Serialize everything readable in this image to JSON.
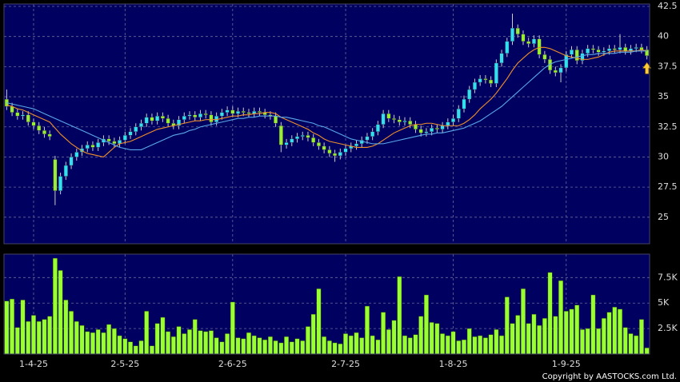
{
  "chart_data": [
    {
      "type": "candlestick",
      "xlim": [
        -0.5,
        119.5
      ],
      "ylim": [
        22.8,
        42.7
      ],
      "yticks": [
        25,
        27.5,
        30,
        32.5,
        35,
        37.5,
        40,
        42.5
      ],
      "grid": true,
      "background": "#000060",
      "up_color": "#33e0f0",
      "down_color": "#99ee33",
      "wick_color": "#cccccc",
      "open": [
        34.8,
        34.2,
        33.7,
        33.4,
        33.5,
        32.9,
        32.6,
        32.2,
        31.9,
        29.8,
        27.2,
        28.4,
        29.3,
        30.0,
        30.4,
        30.7,
        31.0,
        30.8,
        31.2,
        31.5,
        31.3,
        31.1,
        31.4,
        31.8,
        32.1,
        32.5,
        32.8,
        33.3,
        33.0,
        33.4,
        33.2,
        32.8,
        32.6,
        33.1,
        33.4,
        33.5,
        33.3,
        33.6,
        33.5,
        32.9,
        33.4,
        33.7,
        33.9,
        33.6,
        33.8,
        33.7,
        33.6,
        33.8,
        33.7,
        33.5,
        33.4,
        32.6,
        31.0,
        31.2,
        31.5,
        31.7,
        31.8,
        31.6,
        31.2,
        30.9,
        30.6,
        30.3,
        30.1,
        30.4,
        30.7,
        30.9,
        31.1,
        31.4,
        31.7,
        32.1,
        32.7,
        33.6,
        33.2,
        33.1,
        32.9,
        33.0,
        32.7,
        32.3,
        32.0,
        32.1,
        32.4,
        32.3,
        32.6,
        32.9,
        33.2,
        34.0,
        34.8,
        35.6,
        36.2,
        36.5,
        36.4,
        36.1,
        37.8,
        38.6,
        39.6,
        40.7,
        40.2,
        39.6,
        39.4,
        39.8,
        38.5,
        38.1,
        37.2,
        37.0,
        37.4,
        38.5,
        38.9,
        38.0,
        38.6,
        39.0,
        38.9,
        38.7,
        38.8,
        39.0,
        38.9,
        39.1,
        38.8,
        39.0,
        39.1,
        38.9
      ],
      "high": [
        35.6,
        34.5,
        34.0,
        33.8,
        33.8,
        33.2,
        32.9,
        32.5,
        32.2,
        30.1,
        28.7,
        29.6,
        30.3,
        30.7,
        31.0,
        31.3,
        31.3,
        31.5,
        31.8,
        31.8,
        31.6,
        31.7,
        32.1,
        32.4,
        32.8,
        33.1,
        33.6,
        33.6,
        33.7,
        33.7,
        33.5,
        33.1,
        33.4,
        33.7,
        33.8,
        33.8,
        33.9,
        33.9,
        33.8,
        33.7,
        34.0,
        34.2,
        34.2,
        34.1,
        34.1,
        34.0,
        34.1,
        34.1,
        34.0,
        33.8,
        33.7,
        32.9,
        31.5,
        31.8,
        32.0,
        32.1,
        32.1,
        31.9,
        31.5,
        31.2,
        30.9,
        30.6,
        30.7,
        31.0,
        31.2,
        31.4,
        31.7,
        32.0,
        32.4,
        33.0,
        33.9,
        33.9,
        33.5,
        33.4,
        33.3,
        33.3,
        33.0,
        32.6,
        32.4,
        32.7,
        32.7,
        32.9,
        33.2,
        33.5,
        34.3,
        35.1,
        35.9,
        36.5,
        36.8,
        36.8,
        36.7,
        38.1,
        38.9,
        39.9,
        41.9,
        41.0,
        40.5,
        39.9,
        40.1,
        40.1,
        38.8,
        38.4,
        37.5,
        37.7,
        38.8,
        39.2,
        39.2,
        38.9,
        39.3,
        39.3,
        39.2,
        39.1,
        39.3,
        39.3,
        40.2,
        39.4,
        39.3,
        39.4,
        39.4,
        39.2
      ],
      "low": [
        33.9,
        33.4,
        33.1,
        33.1,
        32.6,
        32.3,
        31.9,
        31.6,
        31.4,
        26.0,
        26.9,
        28.1,
        29.0,
        29.7,
        30.1,
        30.4,
        30.5,
        30.5,
        30.9,
        31.0,
        30.8,
        30.8,
        31.1,
        31.5,
        31.8,
        32.2,
        32.5,
        32.7,
        32.7,
        32.9,
        32.5,
        32.3,
        32.3,
        32.8,
        33.1,
        33.0,
        33.0,
        33.2,
        32.6,
        32.6,
        33.1,
        33.4,
        33.3,
        33.3,
        33.4,
        33.3,
        33.3,
        33.4,
        33.2,
        33.1,
        32.5,
        30.4,
        30.7,
        30.9,
        31.2,
        31.4,
        31.3,
        30.9,
        30.6,
        30.3,
        30.0,
        29.6,
        29.8,
        30.1,
        30.4,
        30.6,
        30.8,
        31.1,
        31.4,
        31.8,
        32.4,
        32.9,
        32.8,
        32.6,
        32.6,
        32.4,
        32.0,
        31.7,
        31.7,
        31.8,
        32.0,
        32.0,
        32.3,
        32.6,
        32.9,
        33.7,
        34.5,
        35.3,
        35.9,
        36.1,
        35.8,
        35.8,
        37.5,
        38.3,
        39.3,
        39.9,
        39.3,
        39.1,
        39.1,
        38.2,
        37.8,
        36.9,
        36.7,
        36.2,
        37.1,
        38.2,
        37.7,
        37.7,
        38.3,
        38.6,
        38.4,
        38.4,
        38.5,
        38.6,
        38.6,
        38.5,
        38.5,
        38.7,
        38.6,
        38.1
      ],
      "close": [
        34.2,
        33.7,
        33.4,
        33.5,
        32.9,
        32.6,
        32.2,
        31.9,
        31.7,
        27.2,
        28.4,
        29.3,
        30.0,
        30.4,
        30.7,
        31.0,
        30.8,
        31.2,
        31.5,
        31.3,
        31.1,
        31.4,
        31.8,
        32.1,
        32.5,
        32.8,
        33.3,
        33.0,
        33.4,
        33.2,
        32.8,
        32.6,
        33.1,
        33.4,
        33.5,
        33.3,
        33.6,
        33.5,
        32.9,
        33.4,
        33.7,
        33.9,
        33.6,
        33.8,
        33.7,
        33.6,
        33.8,
        33.7,
        33.5,
        33.4,
        32.8,
        31.0,
        31.2,
        31.5,
        31.7,
        31.8,
        31.6,
        31.2,
        30.9,
        30.6,
        30.3,
        30.1,
        30.4,
        30.7,
        30.9,
        31.1,
        31.4,
        31.7,
        32.1,
        32.7,
        33.6,
        33.2,
        33.1,
        32.9,
        33.0,
        32.7,
        32.3,
        32.0,
        32.1,
        32.4,
        32.3,
        32.6,
        32.9,
        33.2,
        34.0,
        34.8,
        35.6,
        36.2,
        36.5,
        36.4,
        36.1,
        37.8,
        38.6,
        39.6,
        40.7,
        40.2,
        39.6,
        39.4,
        39.8,
        38.5,
        38.1,
        37.2,
        37.0,
        37.4,
        38.5,
        38.9,
        38.0,
        38.6,
        39.0,
        38.9,
        38.7,
        38.8,
        39.0,
        38.9,
        39.1,
        38.8,
        39.0,
        39.1,
        38.9,
        38.4
      ],
      "ma_lines": [
        {
          "color": "#f0902a",
          "values": [
            34.3,
            34.2,
            34.0,
            33.9,
            33.7,
            33.5,
            33.3,
            33.1,
            32.9,
            32.4,
            31.9,
            31.5,
            31.1,
            30.8,
            30.5,
            30.3,
            30.2,
            30.1,
            30.0,
            30.4,
            30.8,
            31.1,
            31.2,
            31.3,
            31.5,
            31.7,
            31.9,
            32.1,
            32.3,
            32.4,
            32.5,
            32.6,
            32.7,
            32.8,
            32.9,
            33.0,
            33.0,
            33.1,
            33.1,
            33.1,
            33.2,
            33.3,
            33.4,
            33.4,
            33.5,
            33.5,
            33.6,
            33.6,
            33.7,
            33.7,
            33.6,
            33.3,
            33.1,
            32.9,
            32.7,
            32.5,
            32.3,
            32.0,
            31.8,
            31.5,
            31.3,
            31.2,
            31.1,
            31.0,
            30.9,
            30.8,
            30.8,
            30.8,
            30.9,
            31.1,
            31.4,
            31.7,
            32.0,
            32.2,
            32.4,
            32.6,
            32.7,
            32.7,
            32.8,
            32.8,
            32.7,
            32.6,
            32.6,
            32.6,
            32.6,
            32.8,
            33.1,
            33.5,
            34.0,
            34.4,
            34.8,
            35.3,
            35.9,
            36.5,
            37.2,
            37.8,
            38.2,
            38.6,
            38.9,
            39.1,
            39.1,
            39.0,
            38.8,
            38.6,
            38.4,
            38.3,
            38.2,
            38.1,
            38.1,
            38.2,
            38.3,
            38.5,
            38.7,
            38.8,
            38.8,
            38.8,
            38.8,
            38.8,
            38.9,
            38.8
          ]
        },
        {
          "color": "#5aa8e8",
          "values": [
            34.5,
            34.4,
            34.3,
            34.2,
            34.1,
            34.0,
            33.8,
            33.6,
            33.4,
            33.2,
            33.0,
            32.8,
            32.6,
            32.4,
            32.2,
            32.0,
            31.8,
            31.6,
            31.4,
            31.2,
            31.0,
            30.8,
            30.7,
            30.6,
            30.6,
            30.6,
            30.8,
            31.0,
            31.2,
            31.4,
            31.6,
            31.8,
            31.9,
            32.0,
            32.2,
            32.3,
            32.5,
            32.6,
            32.7,
            32.8,
            32.9,
            33.0,
            33.1,
            33.2,
            33.2,
            33.3,
            33.3,
            33.4,
            33.4,
            33.4,
            33.4,
            33.3,
            33.3,
            33.2,
            33.1,
            33.0,
            32.9,
            32.8,
            32.6,
            32.5,
            32.3,
            32.1,
            31.9,
            31.7,
            31.5,
            31.4,
            31.3,
            31.2,
            31.1,
            31.1,
            31.1,
            31.2,
            31.3,
            31.4,
            31.5,
            31.6,
            31.7,
            31.8,
            31.9,
            31.9,
            32.0,
            32.0,
            32.1,
            32.2,
            32.3,
            32.4,
            32.6,
            32.8,
            33.0,
            33.3,
            33.6,
            33.9,
            34.2,
            34.6,
            35.0,
            35.4,
            35.8,
            36.2,
            36.6,
            37.0,
            37.4,
            37.7,
            37.9,
            38.0,
            38.1,
            38.2,
            38.3,
            38.4,
            38.5,
            38.5,
            38.6,
            38.6,
            38.6,
            38.6,
            38.7,
            38.7,
            38.7,
            38.8,
            38.8,
            38.8
          ]
        }
      ]
    },
    {
      "type": "bar",
      "xlim": [
        -0.5,
        119.5
      ],
      "ylim": [
        0,
        9800
      ],
      "yticks": [
        {
          "value": 2500,
          "label": "2.5K"
        },
        {
          "value": 5000,
          "label": "5K"
        },
        {
          "value": 7500,
          "label": "7.5K"
        }
      ],
      "xticks": [
        {
          "value": 5,
          "label": "1-4-25"
        },
        {
          "value": 22,
          "label": "2-5-25"
        },
        {
          "value": 42,
          "label": "2-6-25"
        },
        {
          "value": 63,
          "label": "2-7-25"
        },
        {
          "value": 83,
          "label": "1-8-25"
        },
        {
          "value": 104,
          "label": "1-9-25"
        }
      ],
      "grid": true,
      "background": "#000060",
      "color": "#99ff33",
      "values": [
        5200,
        5400,
        2600,
        5300,
        3200,
        3800,
        3200,
        3400,
        3700,
        9400,
        8200,
        5300,
        4200,
        3200,
        2800,
        2200,
        2100,
        2400,
        2100,
        2900,
        2500,
        1800,
        1500,
        1200,
        800,
        1300,
        4200,
        800,
        3000,
        3600,
        2200,
        1700,
        2700,
        2000,
        2400,
        3400,
        2300,
        2200,
        2300,
        1600,
        1200,
        2000,
        5100,
        1600,
        1500,
        2100,
        1800,
        1600,
        1400,
        1700,
        1300,
        1100,
        1700,
        1200,
        1500,
        1300,
        2700,
        3900,
        6400,
        1700,
        1300,
        1100,
        1000,
        2000,
        1800,
        2100,
        1600,
        4700,
        1800,
        1400,
        4100,
        2400,
        3300,
        7600,
        1800,
        1600,
        1900,
        3700,
        5800,
        3100,
        3000,
        2000,
        1800,
        2200,
        1300,
        1400,
        2500,
        1700,
        1800,
        1600,
        1900,
        2400,
        1800,
        5600,
        3000,
        3800,
        6400,
        3000,
        3900,
        2800,
        3500,
        8000,
        3700,
        7200,
        4200,
        4400,
        4800,
        2400,
        2500,
        5800,
        2500,
        3500,
        4100,
        4600,
        4400,
        2600,
        2000,
        1800,
        3400,
        600
      ]
    }
  ],
  "footer": "Copyright by AASTOCKS.com Ltd."
}
